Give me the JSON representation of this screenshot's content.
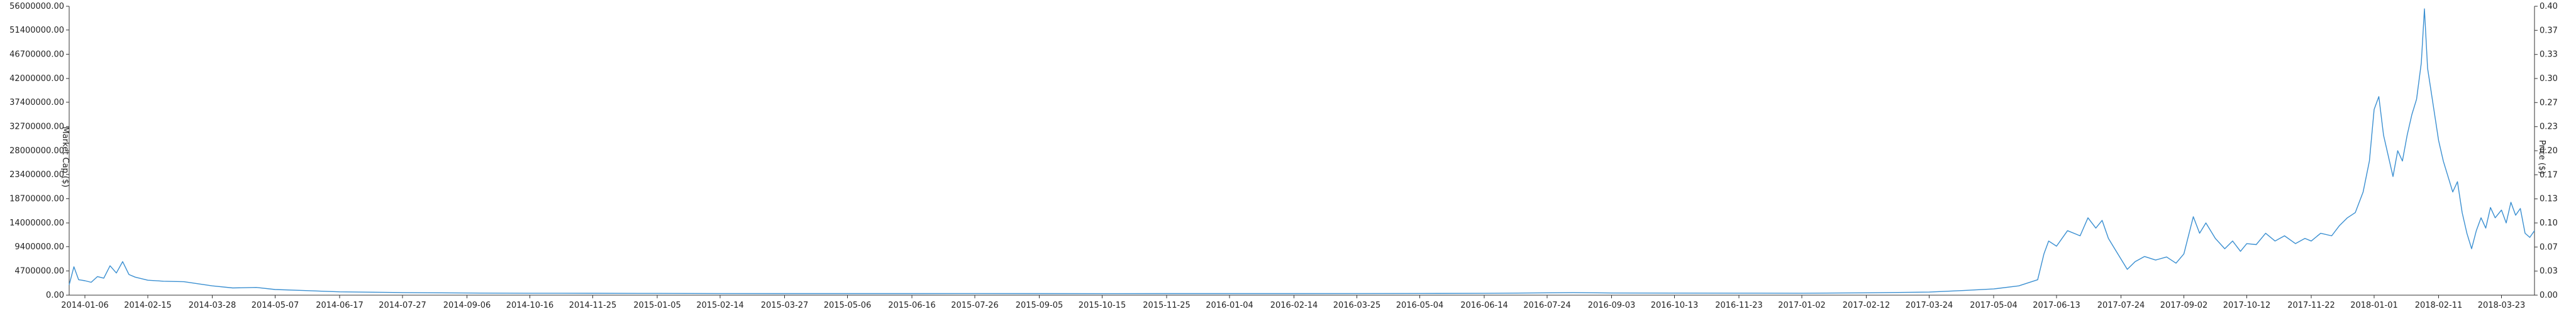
{
  "chart_data": {
    "type": "line",
    "title": "",
    "xlabel": "",
    "ylabel_left": "Market Cap ($)",
    "ylabel_right": "Price ($)",
    "grid": false,
    "legend": "none",
    "colors": {
      "series": "#3a8fd1",
      "axis": "#333333",
      "text": "#222222"
    },
    "x_range": [
      "2013-12-27",
      "2018-04-13"
    ],
    "x_tick_labels": [
      "2014-01-06",
      "2014-02-15",
      "2014-03-28",
      "2014-05-07",
      "2014-06-17",
      "2014-07-27",
      "2014-09-06",
      "2014-10-16",
      "2014-11-25",
      "2015-01-05",
      "2015-02-14",
      "2015-03-27",
      "2015-05-06",
      "2015-06-16",
      "2015-07-26",
      "2015-09-05",
      "2015-10-15",
      "2015-11-25",
      "2016-01-04",
      "2016-02-14",
      "2016-03-25",
      "2016-05-04",
      "2016-06-14",
      "2016-07-24",
      "2016-09-03",
      "2016-10-13",
      "2016-11-23",
      "2017-01-02",
      "2017-02-12",
      "2017-03-24",
      "2017-05-04",
      "2017-06-13",
      "2017-07-24",
      "2017-09-02",
      "2017-10-12",
      "2017-11-22",
      "2018-01-01",
      "2018-02-11",
      "2018-03-23"
    ],
    "y_left": {
      "range": [
        0,
        56000000
      ],
      "tick_labels": [
        "0.00",
        "4700000.00",
        "9400000.00",
        "14000000.00",
        "18700000.00",
        "23400000.00",
        "28000000.00",
        "32700000.00",
        "37400000.00",
        "42000000.00",
        "46700000.00",
        "51400000.00",
        "56000000.00"
      ],
      "tick_values": [
        0,
        4700000,
        9400000,
        14000000,
        18700000,
        23400000,
        28000000,
        32700000,
        37400000,
        42000000,
        46700000,
        51400000,
        56000000
      ]
    },
    "y_right": {
      "range": [
        0,
        0.4
      ],
      "tick_labels": [
        "0.00",
        "0.03",
        "0.07",
        "0.10",
        "0.13",
        "0.17",
        "0.20",
        "0.23",
        "0.27",
        "0.30",
        "0.33",
        "0.37",
        "0.40"
      ],
      "tick_values": [
        0,
        0.0333,
        0.0667,
        0.1,
        0.1333,
        0.1667,
        0.2,
        0.2333,
        0.2667,
        0.3,
        0.3333,
        0.3667,
        0.4
      ]
    },
    "series": [
      {
        "axis": "left",
        "points": [
          [
            "2013-12-27",
            2000000
          ],
          [
            "2013-12-30",
            5500000
          ],
          [
            "2014-01-02",
            3000000
          ],
          [
            "2014-01-06",
            2800000
          ],
          [
            "2014-01-10",
            2500000
          ],
          [
            "2014-01-14",
            3600000
          ],
          [
            "2014-01-18",
            3300000
          ],
          [
            "2014-01-22",
            5700000
          ],
          [
            "2014-01-26",
            4300000
          ],
          [
            "2014-01-30",
            6500000
          ],
          [
            "2014-02-03",
            4000000
          ],
          [
            "2014-02-07",
            3500000
          ],
          [
            "2014-02-15",
            2900000
          ],
          [
            "2014-02-25",
            2700000
          ],
          [
            "2014-03-10",
            2600000
          ],
          [
            "2014-03-28",
            1800000
          ],
          [
            "2014-04-10",
            1400000
          ],
          [
            "2014-04-25",
            1500000
          ],
          [
            "2014-05-07",
            1100000
          ],
          [
            "2014-05-25",
            900000
          ],
          [
            "2014-06-17",
            650000
          ],
          [
            "2014-07-27",
            500000
          ],
          [
            "2014-09-06",
            420000
          ],
          [
            "2014-10-16",
            380000
          ],
          [
            "2014-11-25",
            360000
          ],
          [
            "2015-01-05",
            340000
          ],
          [
            "2015-02-14",
            320000
          ],
          [
            "2015-03-27",
            310000
          ],
          [
            "2015-05-06",
            300000
          ],
          [
            "2015-06-16",
            310000
          ],
          [
            "2015-07-26",
            320000
          ],
          [
            "2015-09-05",
            300000
          ],
          [
            "2015-10-15",
            290000
          ],
          [
            "2015-11-25",
            300000
          ],
          [
            "2016-01-04",
            310000
          ],
          [
            "2016-02-14",
            300000
          ],
          [
            "2016-03-25",
            320000
          ],
          [
            "2016-05-04",
            330000
          ],
          [
            "2016-06-14",
            350000
          ],
          [
            "2016-07-24",
            450000
          ],
          [
            "2016-08-10",
            500000
          ],
          [
            "2016-09-03",
            420000
          ],
          [
            "2016-10-13",
            400000
          ],
          [
            "2016-11-23",
            390000
          ],
          [
            "2017-01-02",
            380000
          ],
          [
            "2017-02-12",
            450000
          ],
          [
            "2017-03-24",
            600000
          ],
          [
            "2017-04-15",
            900000
          ],
          [
            "2017-05-04",
            1200000
          ],
          [
            "2017-05-20",
            1800000
          ],
          [
            "2017-06-01",
            3000000
          ],
          [
            "2017-06-05",
            8000000
          ],
          [
            "2017-06-08",
            10500000
          ],
          [
            "2017-06-13",
            9500000
          ],
          [
            "2017-06-20",
            12500000
          ],
          [
            "2017-06-28",
            11500000
          ],
          [
            "2017-07-03",
            15000000
          ],
          [
            "2017-07-08",
            13000000
          ],
          [
            "2017-07-12",
            14500000
          ],
          [
            "2017-07-16",
            11000000
          ],
          [
            "2017-07-20",
            9000000
          ],
          [
            "2017-07-24",
            7000000
          ],
          [
            "2017-07-28",
            5000000
          ],
          [
            "2017-08-02",
            6500000
          ],
          [
            "2017-08-08",
            7500000
          ],
          [
            "2017-08-15",
            6800000
          ],
          [
            "2017-08-22",
            7400000
          ],
          [
            "2017-08-28",
            6200000
          ],
          [
            "2017-09-02",
            8000000
          ],
          [
            "2017-09-08",
            15200000
          ],
          [
            "2017-09-12",
            12000000
          ],
          [
            "2017-09-16",
            14000000
          ],
          [
            "2017-09-22",
            11000000
          ],
          [
            "2017-09-28",
            9000000
          ],
          [
            "2017-10-03",
            10500000
          ],
          [
            "2017-10-08",
            8500000
          ],
          [
            "2017-10-12",
            10000000
          ],
          [
            "2017-10-18",
            9800000
          ],
          [
            "2017-10-24",
            12000000
          ],
          [
            "2017-10-30",
            10500000
          ],
          [
            "2017-11-05",
            11500000
          ],
          [
            "2017-11-12",
            10000000
          ],
          [
            "2017-11-18",
            11000000
          ],
          [
            "2017-11-22",
            10500000
          ],
          [
            "2017-11-28",
            12000000
          ],
          [
            "2017-12-05",
            11500000
          ],
          [
            "2017-12-10",
            13500000
          ],
          [
            "2017-12-15",
            15000000
          ],
          [
            "2017-12-20",
            16000000
          ],
          [
            "2017-12-25",
            20000000
          ],
          [
            "2017-12-29",
            26000000
          ],
          [
            "2018-01-01",
            36000000
          ],
          [
            "2018-01-04",
            38500000
          ],
          [
            "2018-01-07",
            31000000
          ],
          [
            "2018-01-10",
            27000000
          ],
          [
            "2018-01-13",
            23000000
          ],
          [
            "2018-01-16",
            28000000
          ],
          [
            "2018-01-19",
            26000000
          ],
          [
            "2018-01-22",
            31000000
          ],
          [
            "2018-01-25",
            35000000
          ],
          [
            "2018-01-28",
            38000000
          ],
          [
            "2018-01-31",
            45000000
          ],
          [
            "2018-02-02",
            55500000
          ],
          [
            "2018-02-04",
            44000000
          ],
          [
            "2018-02-06",
            40000000
          ],
          [
            "2018-02-08",
            36000000
          ],
          [
            "2018-02-11",
            30000000
          ],
          [
            "2018-02-14",
            26000000
          ],
          [
            "2018-02-17",
            23000000
          ],
          [
            "2018-02-20",
            20000000
          ],
          [
            "2018-02-23",
            22000000
          ],
          [
            "2018-02-26",
            16000000
          ],
          [
            "2018-03-01",
            12000000
          ],
          [
            "2018-03-04",
            9000000
          ],
          [
            "2018-03-07",
            12500000
          ],
          [
            "2018-03-10",
            15000000
          ],
          [
            "2018-03-13",
            13000000
          ],
          [
            "2018-03-16",
            17000000
          ],
          [
            "2018-03-19",
            15000000
          ],
          [
            "2018-03-23",
            16500000
          ],
          [
            "2018-03-26",
            14000000
          ],
          [
            "2018-03-29",
            18000000
          ],
          [
            "2018-04-01",
            15500000
          ],
          [
            "2018-04-04",
            16800000
          ],
          [
            "2018-04-07",
            12000000
          ],
          [
            "2018-04-10",
            11200000
          ],
          [
            "2018-04-13",
            12500000
          ]
        ]
      }
    ]
  }
}
